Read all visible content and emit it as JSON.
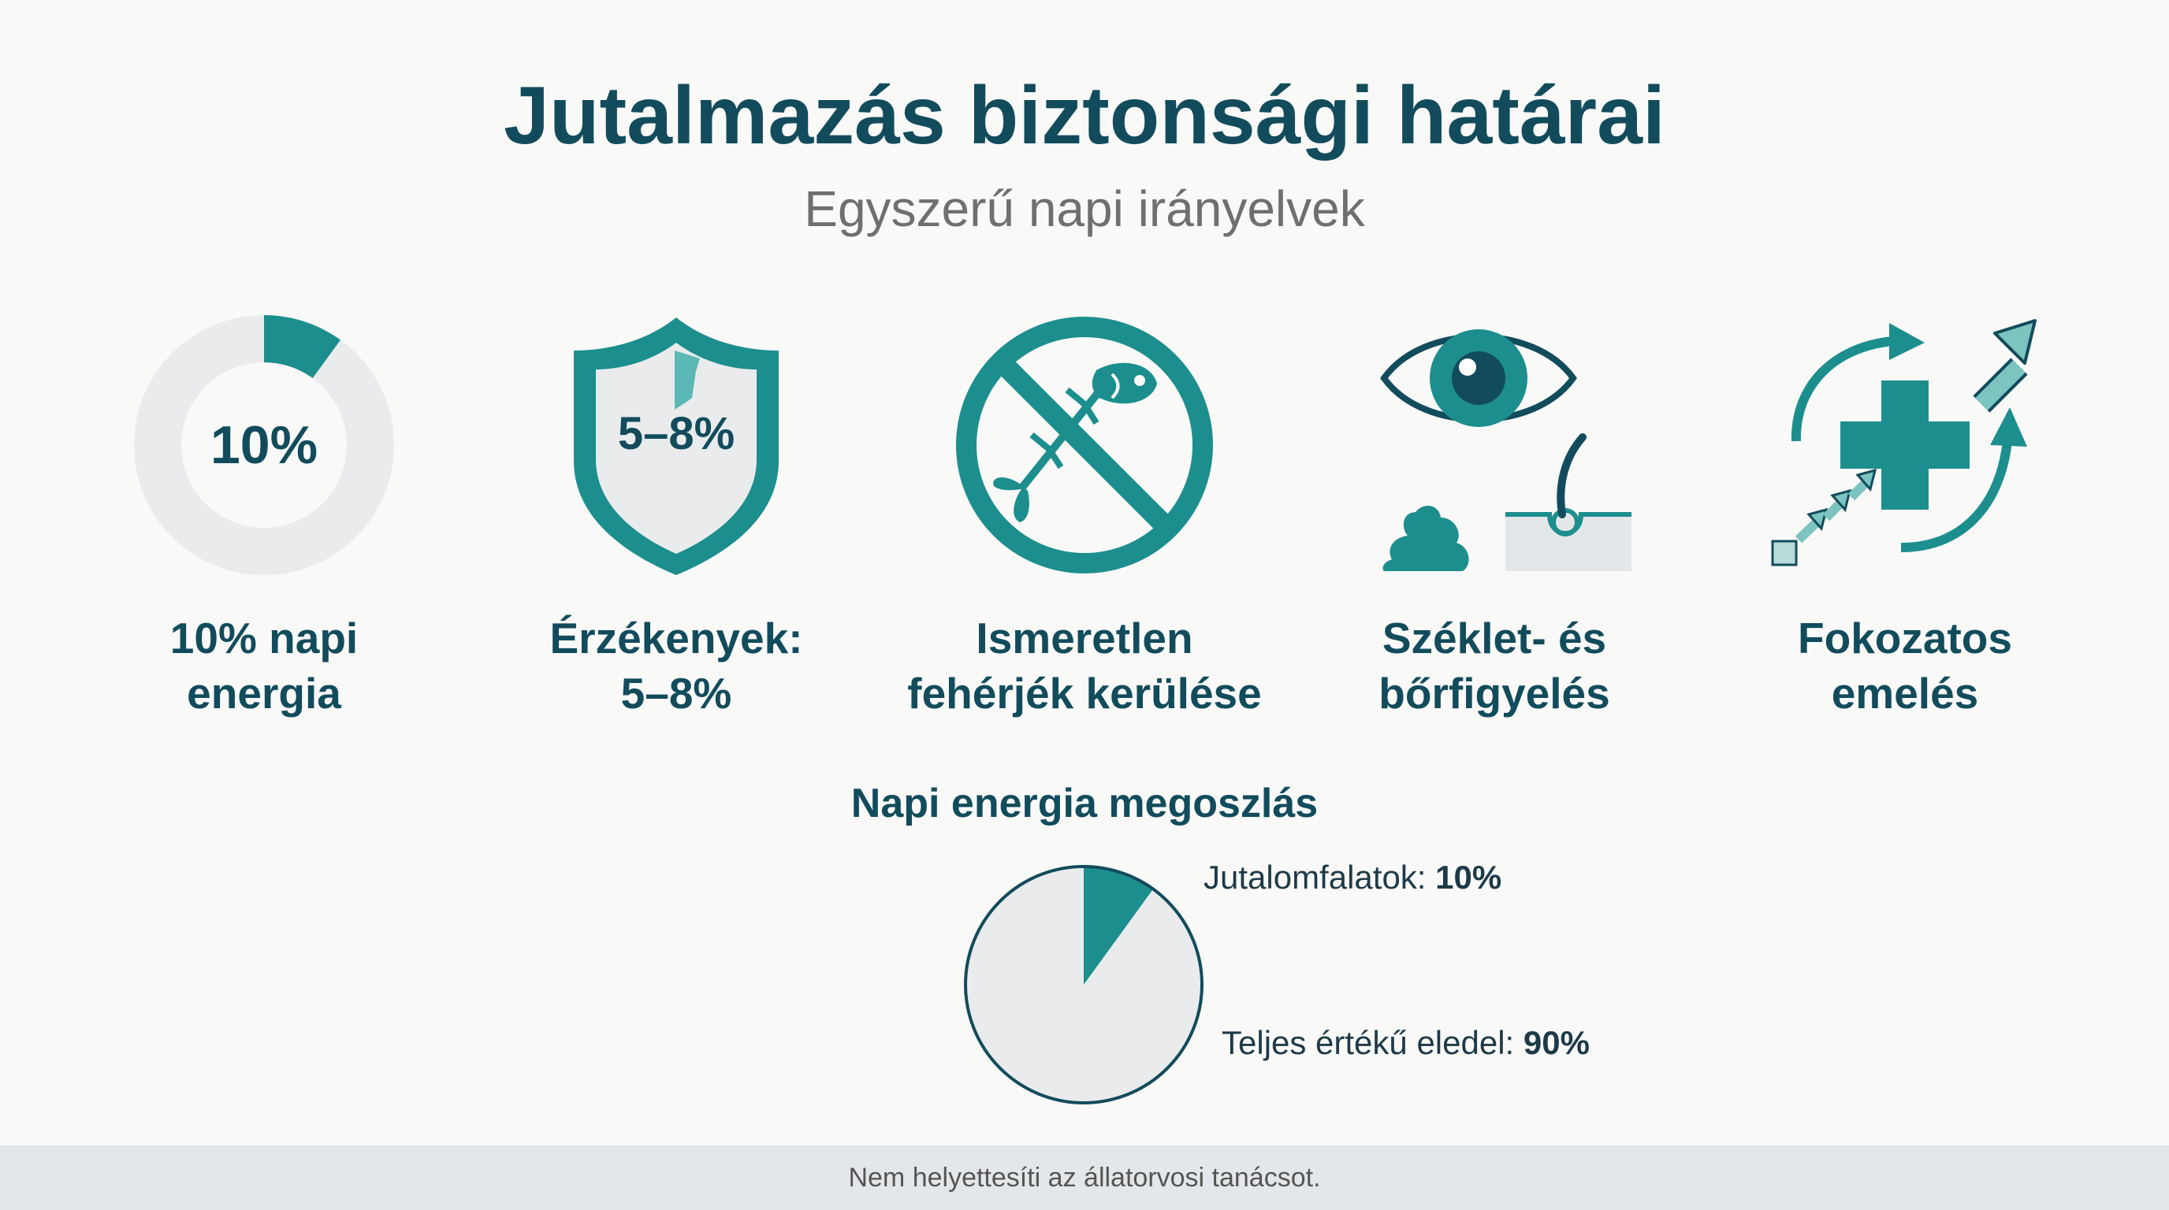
{
  "title": "Jutalmazás biztonsági határai",
  "subtitle": "Egyszerű napi irányelvek",
  "colors": {
    "teal": "#1d8e8e",
    "dark_teal": "#124c5c",
    "light_gray": "#e9ebed",
    "light_teal": "#5bb8b4"
  },
  "cards": [
    {
      "icon": "donut-10-percent-icon",
      "icon_text": "10%",
      "fill_fraction": 0.1,
      "line1": "10% napi",
      "line2": "energia"
    },
    {
      "icon": "shield-icon",
      "icon_text": "5–8%",
      "line1": "Érzékenyek:",
      "line2": "5–8%"
    },
    {
      "icon": "no-fish-icon",
      "line1": "Ismeretlen",
      "line2": "fehérjék kerülése"
    },
    {
      "icon": "eye-stool-skin-icon",
      "line1": "Széklet- és",
      "line2": "bőrfigyelés"
    },
    {
      "icon": "gradual-increase-icon",
      "line1": "Fokozatos",
      "line2": "emelés"
    }
  ],
  "distribution": {
    "title": "Napi energia megoszlás",
    "legend": [
      {
        "label": "Jutalomfalatok:",
        "value": "10%"
      },
      {
        "label": "Teljes értékű eledel:",
        "value": "90%"
      }
    ]
  },
  "chart_data": {
    "type": "pie",
    "categories": [
      "Jutalomfalatok",
      "Teljes értékű eledel"
    ],
    "values": [
      10,
      90
    ],
    "title": "Napi energia megoszlás"
  },
  "footer": "Nem helyettesíti az állatorvosi tanácsot."
}
